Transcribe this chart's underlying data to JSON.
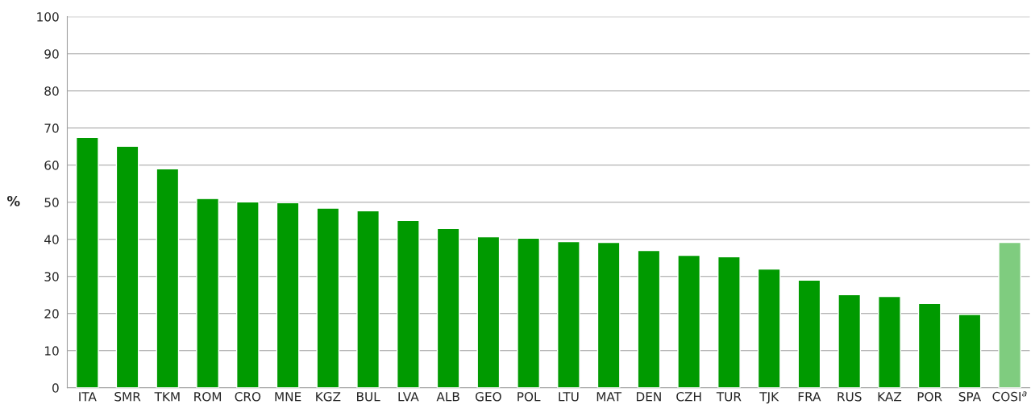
{
  "chart_data": {
    "type": "bar",
    "ylabel": "%",
    "categories": [
      "ITA",
      "SMR",
      "TKM",
      "ROM",
      "CRO",
      "MNE",
      "KGZ",
      "BUL",
      "LVA",
      "ALB",
      "GEO",
      "POL",
      "LTU",
      "MAT",
      "DEN",
      "CZH",
      "TUR",
      "TJK",
      "FRA",
      "RUS",
      "KAZ",
      "POR",
      "SPA",
      "COSI$^{a}$"
    ],
    "values": [
      67.5,
      65.1,
      59.0,
      51.0,
      50.1,
      49.9,
      48.4,
      47.7,
      45.1,
      42.9,
      40.7,
      40.3,
      39.4,
      39.2,
      37.0,
      35.7,
      35.3,
      32.0,
      29.0,
      25.1,
      24.6,
      22.7,
      19.8,
      39.2
    ],
    "colors": [
      "#009a00",
      "#009a00",
      "#009a00",
      "#009a00",
      "#009a00",
      "#009a00",
      "#009a00",
      "#009a00",
      "#009a00",
      "#009a00",
      "#009a00",
      "#009a00",
      "#009a00",
      "#009a00",
      "#009a00",
      "#009a00",
      "#009a00",
      "#009a00",
      "#009a00",
      "#009a00",
      "#009a00",
      "#009a00",
      "#009a00",
      "#7fcc7f"
    ],
    "ylim": [
      0,
      100
    ],
    "yticks": [
      0,
      10,
      20,
      30,
      40,
      50,
      60,
      70,
      80,
      90,
      100
    ],
    "grid": "y"
  }
}
